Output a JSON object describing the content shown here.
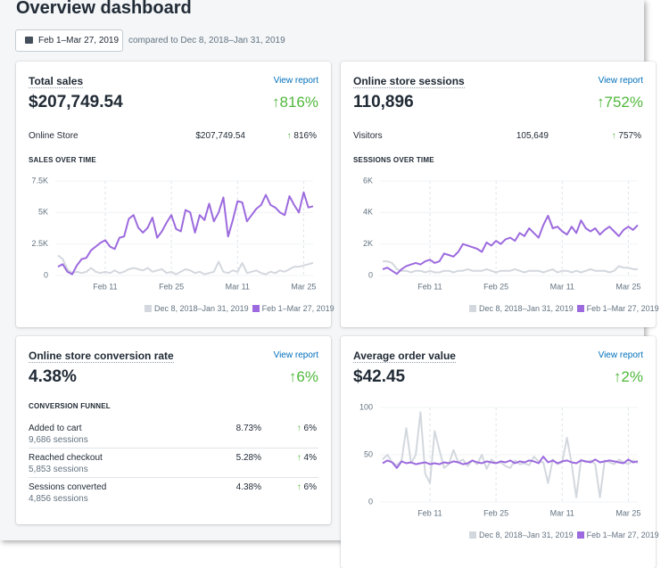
{
  "header": {
    "title": "Overview dashboard",
    "date_range": "Feb 1–Mar 27, 2019",
    "comparison": "compared to Dec 8, 2018–Jan 31, 2019"
  },
  "cards": [
    {
      "title": "Total sales",
      "link": "View report",
      "value": "$207,749.54",
      "change": "816%",
      "breakdown": [
        {
          "label": "Online Store",
          "value": "$207,749.54",
          "change": "816%"
        }
      ],
      "chart": {
        "type": "line",
        "title": "SALES OVER TIME",
        "categories": [
          null,
          null,
          null,
          null,
          null,
          null,
          null,
          null,
          null,
          null,
          "Feb 11",
          null,
          null,
          null,
          null,
          null,
          null,
          null,
          null,
          null,
          null,
          null,
          null,
          null,
          "Feb 25",
          null,
          null,
          null,
          null,
          null,
          null,
          null,
          null,
          null,
          null,
          null,
          null,
          null,
          "Mar 11",
          null,
          null,
          null,
          null,
          null,
          null,
          null,
          null,
          null,
          null,
          null,
          null,
          null,
          "Mar 25",
          null,
          null
        ],
        "series": [
          {
            "name": "Dec 8, 2018–Jan 31, 2019",
            "color": "#d3d8de",
            "values": [
              1600,
              1300,
              500,
              200,
              300,
              200,
              300,
              600,
              300,
              200,
              300,
              200,
              400,
              200,
              300,
              500,
              600,
              500,
              400,
              600,
              300,
              400,
              500,
              200,
              300,
              100,
              300,
              500,
              400,
              200,
              300,
              100,
              200,
              300,
              1100,
              300,
              200,
              400,
              300,
              1000,
              200,
              300,
              400,
              200,
              100,
              300,
              200,
              400,
              300,
              500,
              700,
              700,
              800,
              900,
              1000
            ]
          },
          {
            "name": "Feb 1–Mar 27, 2019",
            "color": "#9c6ade",
            "values": [
              700,
              900,
              300,
              100,
              800,
              1300,
              1400,
              2000,
              2300,
              2600,
              2800,
              2300,
              2100,
              3000,
              3100,
              4500,
              4800,
              3800,
              3400,
              3800,
              4600,
              3000,
              3500,
              4200,
              4800,
              3700,
              3500,
              5200,
              5000,
              3400,
              4800,
              4400,
              5700,
              4300,
              5000,
              6200,
              3100,
              4400,
              5900,
              5800,
              4300,
              4800,
              5300,
              5600,
              6400,
              5600,
              5400,
              5000,
              4800,
              6300,
              5600,
              5000,
              6600,
              5400,
              5500
            ]
          }
        ],
        "ylim": [
          0,
          7500
        ],
        "yticks": [
          0,
          {
            "value": 2500,
            "label": "2.5K"
          },
          {
            "value": 5000,
            "label": "5K"
          },
          {
            "value": 7500,
            "label": "7.5K"
          }
        ]
      }
    },
    {
      "title": "Online store sessions",
      "link": "View report",
      "value": "110,896",
      "change": "752%",
      "breakdown": [
        {
          "label": "Visitors",
          "value": "105,649",
          "change": "757%"
        }
      ],
      "chart": {
        "type": "line",
        "title": "SESSIONS OVER TIME",
        "categories": [
          null,
          null,
          null,
          null,
          null,
          null,
          null,
          null,
          null,
          null,
          "Feb 11",
          null,
          null,
          null,
          null,
          null,
          null,
          null,
          null,
          null,
          null,
          null,
          null,
          null,
          "Feb 25",
          null,
          null,
          null,
          null,
          null,
          null,
          null,
          null,
          null,
          null,
          null,
          null,
          null,
          "Mar 11",
          null,
          null,
          null,
          null,
          null,
          null,
          null,
          null,
          null,
          null,
          null,
          null,
          null,
          "Mar 25",
          null,
          null
        ],
        "series": [
          {
            "name": "Dec 8, 2018–Jan 31, 2019",
            "color": "#d3d8de",
            "values": [
              900,
              900,
              800,
              400,
              300,
              300,
              200,
              300,
              300,
              200,
              300,
              200,
              200,
              300,
              300,
              200,
              300,
              300,
              400,
              300,
              300,
              300,
              400,
              300,
              200,
              300,
              300,
              300,
              400,
              300,
              200,
              300,
              300,
              300,
              200,
              300,
              400,
              200,
              300,
              300,
              200,
              300,
              200,
              300,
              400,
              300,
              300,
              300,
              200,
              300,
              600,
              500,
              500,
              400,
              400
            ]
          },
          {
            "name": "Feb 1–Mar 27, 2019",
            "color": "#9c6ade",
            "values": [
              400,
              500,
              300,
              100,
              400,
              600,
              700,
              800,
              700,
              900,
              1000,
              800,
              900,
              1400,
              1300,
              1200,
              1500,
              2000,
              1900,
              1800,
              1700,
              1500,
              2100,
              1900,
              2200,
              2000,
              2300,
              2400,
              2200,
              2700,
              2500,
              3000,
              2700,
              2400,
              3200,
              3800,
              3000,
              3100,
              2800,
              2600,
              3100,
              2700,
              3500,
              3000,
              2800,
              3000,
              2600,
              2900,
              3100,
              2800,
              2500,
              2900,
              3100,
              2900,
              3200
            ]
          }
        ],
        "ylim": [
          0,
          6000
        ],
        "yticks": [
          0,
          {
            "value": 2000,
            "label": "2K"
          },
          {
            "value": 4000,
            "label": "4K"
          },
          {
            "value": 6000,
            "label": "6K"
          }
        ]
      }
    },
    {
      "title": "Online store conversion rate",
      "link": "View report",
      "value": "4.38%",
      "change": "6%",
      "funnel": {
        "title": "CONVERSION FUNNEL",
        "rows": [
          {
            "label": "Added to cart",
            "sessions": "9,686 sessions",
            "rate": "8.73%",
            "change": "6%"
          },
          {
            "label": "Reached checkout",
            "sessions": "5,853 sessions",
            "rate": "5.28%",
            "change": "4%"
          },
          {
            "label": "Sessions converted",
            "sessions": "4,856 sessions",
            "rate": "4.38%",
            "change": "6%"
          }
        ]
      }
    },
    {
      "title": "Average order value",
      "link": "View report",
      "value": "$42.45",
      "change": "2%",
      "chart": {
        "type": "line",
        "categories": [
          null,
          null,
          null,
          null,
          null,
          null,
          null,
          null,
          null,
          null,
          "Feb 11",
          null,
          null,
          null,
          null,
          null,
          null,
          null,
          null,
          null,
          null,
          null,
          null,
          null,
          "Feb 25",
          null,
          null,
          null,
          null,
          null,
          null,
          null,
          null,
          null,
          null,
          null,
          null,
          null,
          "Mar 11",
          null,
          null,
          null,
          null,
          null,
          null,
          null,
          null,
          null,
          null,
          null,
          null,
          null,
          "Mar 25",
          null,
          null
        ],
        "series": [
          {
            "name": "Dec 8, 2018–Jan 31, 2019",
            "color": "#d3d8de",
            "values": [
              45,
              50,
              42,
              39,
              44,
              78,
              41,
              50,
              95,
              30,
              20,
              75,
              55,
              36,
              40,
              55,
              42,
              45,
              38,
              44,
              40,
              50,
              35,
              45,
              41,
              42,
              38,
              36,
              44,
              40,
              41,
              39,
              48,
              43,
              42,
              20,
              45,
              40,
              42,
              68,
              40,
              5,
              45,
              42,
              44,
              40,
              5,
              44,
              42,
              40,
              45,
              42,
              40,
              44,
              41
            ]
          },
          {
            "name": "Feb 1–Mar 27, 2019",
            "color": "#9c6ade",
            "values": [
              41,
              44,
              42,
              36,
              43,
              41,
              42,
              40,
              41,
              42,
              40,
              41,
              40,
              42,
              41,
              43,
              42,
              40,
              41,
              44,
              42,
              41,
              43,
              42,
              41,
              43,
              42,
              44,
              41,
              43,
              42,
              44,
              43,
              41,
              48,
              42,
              44,
              41,
              43,
              44,
              42,
              41,
              44,
              43,
              42,
              45,
              42,
              43,
              44,
              43,
              42,
              41,
              45,
              42,
              43
            ]
          }
        ],
        "ylim": [
          0,
          100
        ],
        "yticks": [
          0,
          50,
          100
        ]
      }
    }
  ]
}
